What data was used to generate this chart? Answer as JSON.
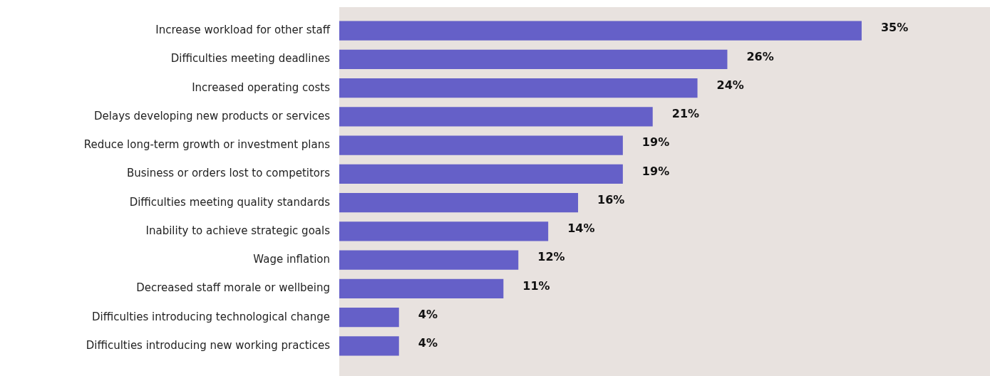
{
  "chart_data": {
    "type": "bar",
    "orientation": "horizontal",
    "categories": [
      "Increase workload for other staff",
      "Difficulties meeting deadlines",
      "Increased operating costs",
      "Delays developing new products or services",
      "Reduce long-term growth or investment plans",
      "Business or orders lost to competitors",
      "Difficulties meeting quality standards",
      "Inability to achieve strategic goals",
      "Wage inflation",
      "Decreased staff morale or wellbeing",
      "Difficulties introducing technological change",
      "Difficulties introducing new working practices"
    ],
    "values": [
      35,
      26,
      24,
      21,
      19,
      19,
      16,
      14,
      12,
      11,
      4,
      4
    ],
    "value_labels": [
      "35%",
      "26%",
      "24%",
      "21%",
      "19%",
      "19%",
      "16%",
      "14%",
      "12%",
      "11%",
      "4%",
      "4%"
    ],
    "color": "#6560c8",
    "xlim": [
      0,
      43.6
    ],
    "tick_labels": "y",
    "grid": false,
    "legend": false
  }
}
